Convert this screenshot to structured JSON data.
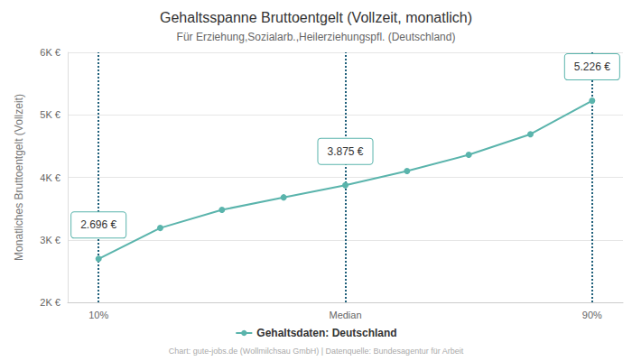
{
  "chart_data": {
    "type": "line",
    "title": "Gehaltsspanne Bruttoentgelt (Vollzeit, monatlich)",
    "subtitle": "Für Erziehung,Sozialarb.,Heilerziehungspfl. (Deutschland)",
    "y_label": "Monatliches Bruttoentgelt (Vollzeit)",
    "source": "Chart: gute-jobs.de (Wollmilchsau GmbH) | Datenquelle: Bundesagentur für Arbeit",
    "categories": [
      "10%",
      null,
      null,
      null,
      "Median",
      null,
      null,
      null,
      "90%"
    ],
    "series": [
      {
        "name": "Gehaltsdaten: Deutschland",
        "color": "#5ab4ac",
        "marker": "circle",
        "values": [
          2696,
          3190,
          3480,
          3680,
          3875,
          4100,
          4360,
          4690,
          5226
        ]
      }
    ],
    "annotations": [
      {
        "x": "10%",
        "y": 2696,
        "label": "2.696 €"
      },
      {
        "x": "Median",
        "y": 3875,
        "label": "3.875 €"
      },
      {
        "x": "90%",
        "y": 5226,
        "label": "5.226 €"
      }
    ],
    "ylim": [
      2000,
      6000
    ],
    "yticks": [
      {
        "value": 2000,
        "label": "2K €"
      },
      {
        "value": 3000,
        "label": "3K €"
      },
      {
        "value": 4000,
        "label": "4K €"
      },
      {
        "value": 5000,
        "label": "5K €"
      },
      {
        "value": 6000,
        "label": "6K €"
      }
    ],
    "grid": true,
    "legend": "bottom"
  }
}
